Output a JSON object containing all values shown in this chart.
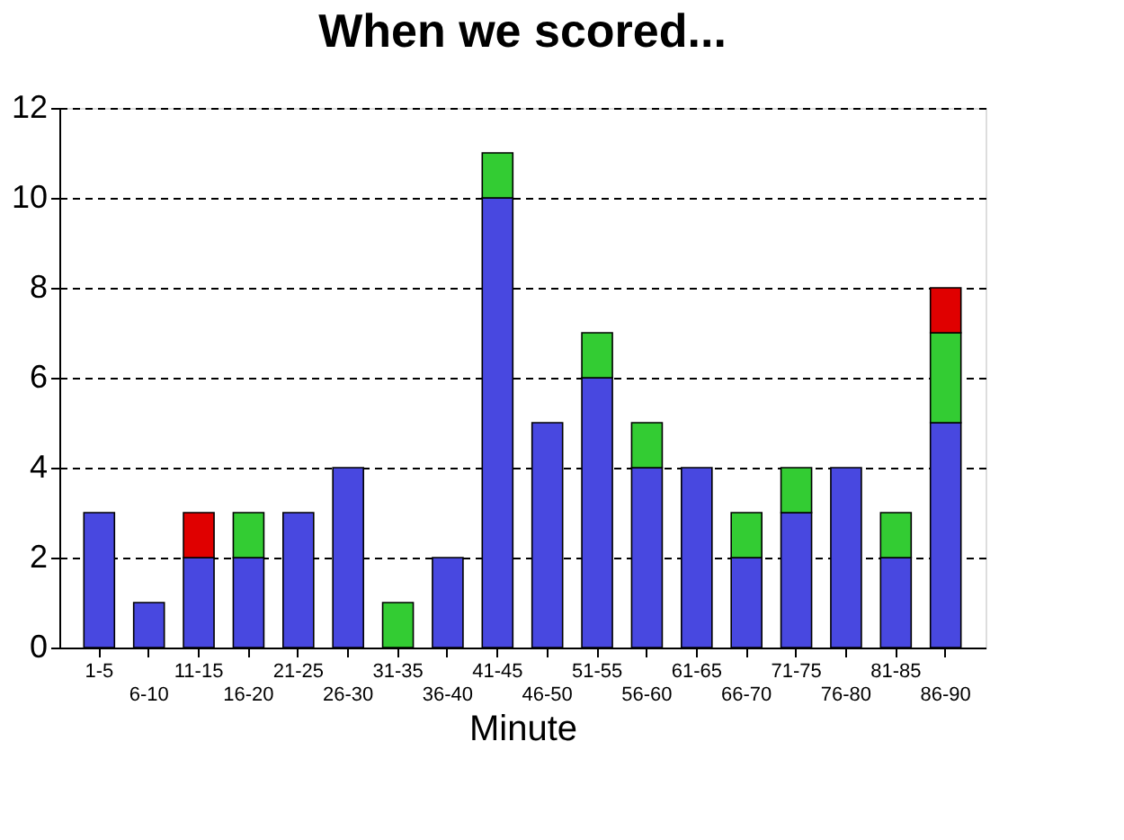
{
  "chart_data": {
    "type": "bar",
    "title": "When we scored...",
    "xlabel": "Minute",
    "stacked": true,
    "categories": [
      "1-5",
      "6-10",
      "11-15",
      "16-20",
      "21-25",
      "26-30",
      "31-35",
      "36-40",
      "41-45",
      "46-50",
      "51-55",
      "56-60",
      "61-65",
      "66-70",
      "71-75",
      "76-80",
      "81-85",
      "86-90"
    ],
    "series": [
      {
        "color": "#4848e0",
        "values": [
          3,
          1,
          2,
          2,
          3,
          4,
          0,
          2,
          10,
          5,
          6,
          4,
          4,
          2,
          3,
          4,
          2,
          5
        ]
      },
      {
        "color": "#33cc33",
        "values": [
          0,
          0,
          0,
          1,
          0,
          0,
          1,
          0,
          1,
          0,
          1,
          1,
          0,
          1,
          1,
          0,
          1,
          2
        ]
      },
      {
        "color": "#e00000",
        "values": [
          0,
          0,
          1,
          0,
          0,
          0,
          0,
          0,
          0,
          0,
          0,
          0,
          0,
          0,
          0,
          0,
          0,
          1
        ]
      }
    ],
    "ylim": [
      0,
      12
    ],
    "yticks": [
      0,
      2,
      4,
      6,
      8,
      10,
      12
    ],
    "grid": "y"
  }
}
